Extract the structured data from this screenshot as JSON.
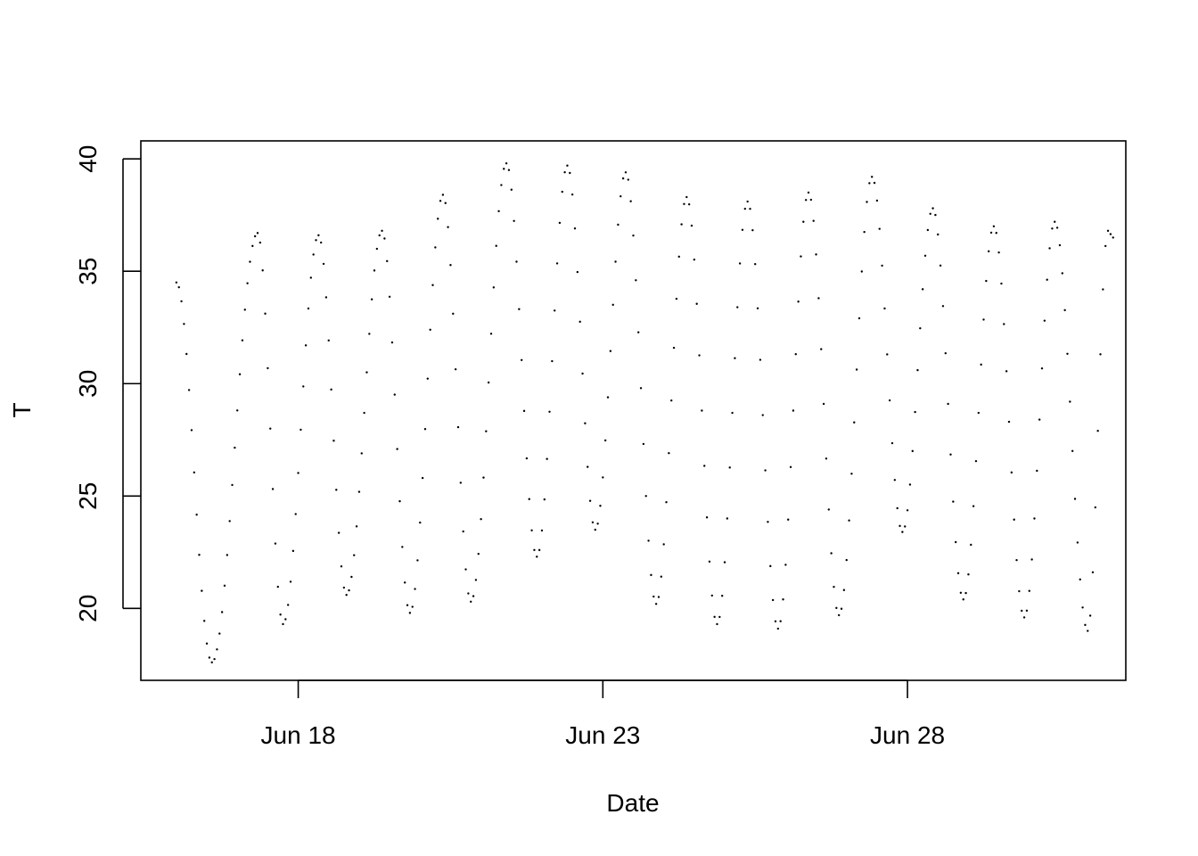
{
  "chart_data": {
    "type": "scatter",
    "xlabel": "Date",
    "ylabel": "T",
    "x_ticks": [
      "Jun 18",
      "Jun 23",
      "Jun 28"
    ],
    "y_ticks": [
      20,
      25,
      30,
      35,
      40
    ],
    "xlim": [
      "2015-06-15T10:00",
      "2015-07-01T14:00"
    ],
    "ylim": [
      16.8,
      40.8
    ],
    "grid": false,
    "legend": "none",
    "marker": "small dot",
    "series": [
      {
        "sampling": "hourly",
        "extrema": [
          {
            "t": "2015-06-16T00:00",
            "v": 34.5
          },
          {
            "t": "2015-06-16T14:00",
            "v": 17.6
          },
          {
            "t": "2015-06-17T08:00",
            "v": 36.7
          },
          {
            "t": "2015-06-17T18:00",
            "v": 19.3
          },
          {
            "t": "2015-06-18T08:00",
            "v": 36.6
          },
          {
            "t": "2015-06-18T19:00",
            "v": 20.6
          },
          {
            "t": "2015-06-19T09:00",
            "v": 36.8
          },
          {
            "t": "2015-06-19T20:00",
            "v": 19.8
          },
          {
            "t": "2015-06-20T09:00",
            "v": 38.4
          },
          {
            "t": "2015-06-20T20:00",
            "v": 20.3
          },
          {
            "t": "2015-06-21T10:00",
            "v": 39.8
          },
          {
            "t": "2015-06-21T22:00",
            "v": 22.3
          },
          {
            "t": "2015-06-22T10:00",
            "v": 39.7
          },
          {
            "t": "2015-06-22T21:00",
            "v": 23.5
          },
          {
            "t": "2015-06-23T09:00",
            "v": 39.4
          },
          {
            "t": "2015-06-23T21:00",
            "v": 20.2
          },
          {
            "t": "2015-06-24T09:00",
            "v": 38.3
          },
          {
            "t": "2015-06-24T21:00",
            "v": 19.3
          },
          {
            "t": "2015-06-25T09:00",
            "v": 38.1
          },
          {
            "t": "2015-06-25T21:00",
            "v": 19.1
          },
          {
            "t": "2015-06-26T09:00",
            "v": 38.5
          },
          {
            "t": "2015-06-26T21:00",
            "v": 19.7
          },
          {
            "t": "2015-06-27T10:00",
            "v": 39.2
          },
          {
            "t": "2015-06-27T22:00",
            "v": 23.4
          },
          {
            "t": "2015-06-28T10:00",
            "v": 37.8
          },
          {
            "t": "2015-06-28T22:00",
            "v": 20.4
          },
          {
            "t": "2015-06-29T10:00",
            "v": 37.0
          },
          {
            "t": "2015-06-29T22:00",
            "v": 19.6
          },
          {
            "t": "2015-06-30T10:00",
            "v": 37.2
          },
          {
            "t": "2015-06-30T23:00",
            "v": 19.0
          },
          {
            "t": "2015-07-01T07:00",
            "v": 36.8
          },
          {
            "t": "2015-07-01T09:00",
            "v": 36.5
          }
        ]
      }
    ]
  }
}
